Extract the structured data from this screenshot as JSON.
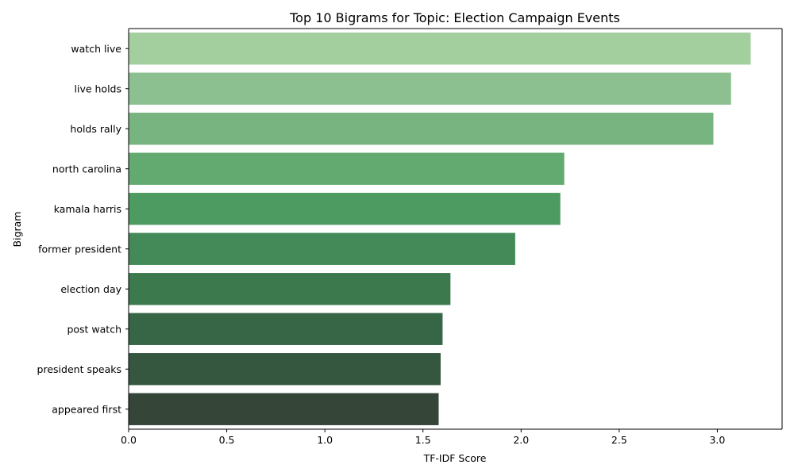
{
  "chart_data": {
    "type": "bar",
    "orientation": "horizontal",
    "title": "Top 10 Bigrams for Topic: Election Campaign Events",
    "xlabel": "TF-IDF Score",
    "ylabel": "Bigram",
    "categories": [
      "watch live",
      "live holds",
      "holds rally",
      "north carolina",
      "kamala harris",
      "former president",
      "election day",
      "post watch",
      "president speaks",
      "appeared first"
    ],
    "values": [
      3.17,
      3.07,
      2.98,
      2.22,
      2.2,
      1.97,
      1.64,
      1.6,
      1.59,
      1.58
    ],
    "colors": [
      "#a3cf9f",
      "#8dc091",
      "#77b47f",
      "#62aa70",
      "#4e9b61",
      "#438a58",
      "#3c7a4d",
      "#376647",
      "#36573f",
      "#354538"
    ],
    "xlim": [
      0,
      3.33
    ],
    "xticks": [
      0.0,
      0.5,
      1.0,
      1.5,
      2.0,
      2.5,
      3.0
    ],
    "xtick_labels": [
      "0.0",
      "0.5",
      "1.0",
      "1.5",
      "2.0",
      "2.5",
      "3.0"
    ],
    "grid": false,
    "legend": "none"
  }
}
